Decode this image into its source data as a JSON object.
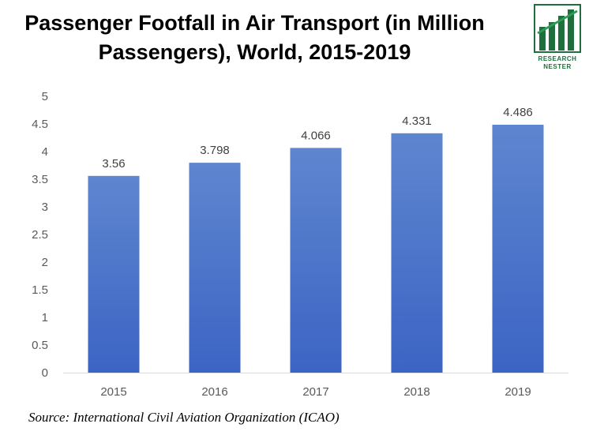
{
  "title_lines": [
    "Passenger Footfall in Air Transport (in Million",
    "Passengers), World, 2015-2019"
  ],
  "logo": {
    "line1": "RESEARCH",
    "line2": "NESTER",
    "color": "#1f6f3d"
  },
  "source": "Source: International Civil Aviation Organization (ICAO)",
  "chart_data": {
    "type": "bar",
    "title": "Passenger Footfall in Air Transport (in Million Passengers), World, 2015-2019",
    "categories": [
      "2015",
      "2016",
      "2017",
      "2018",
      "2019"
    ],
    "values": [
      3.56,
      3.798,
      4.066,
      4.331,
      4.486
    ],
    "data_labels": [
      "3.56",
      "3.798",
      "4.066",
      "4.331",
      "4.486"
    ],
    "ylim": [
      0,
      5
    ],
    "yticks": [
      "0",
      "0.5",
      "1",
      "1.5",
      "2",
      "2.5",
      "3",
      "3.5",
      "4",
      "4.5",
      "5"
    ],
    "grid": false,
    "legend": "none",
    "bar_color_top": "#5e86cf",
    "bar_color_bottom": "#3c64c4",
    "axis_color": "#d9d9d9"
  }
}
